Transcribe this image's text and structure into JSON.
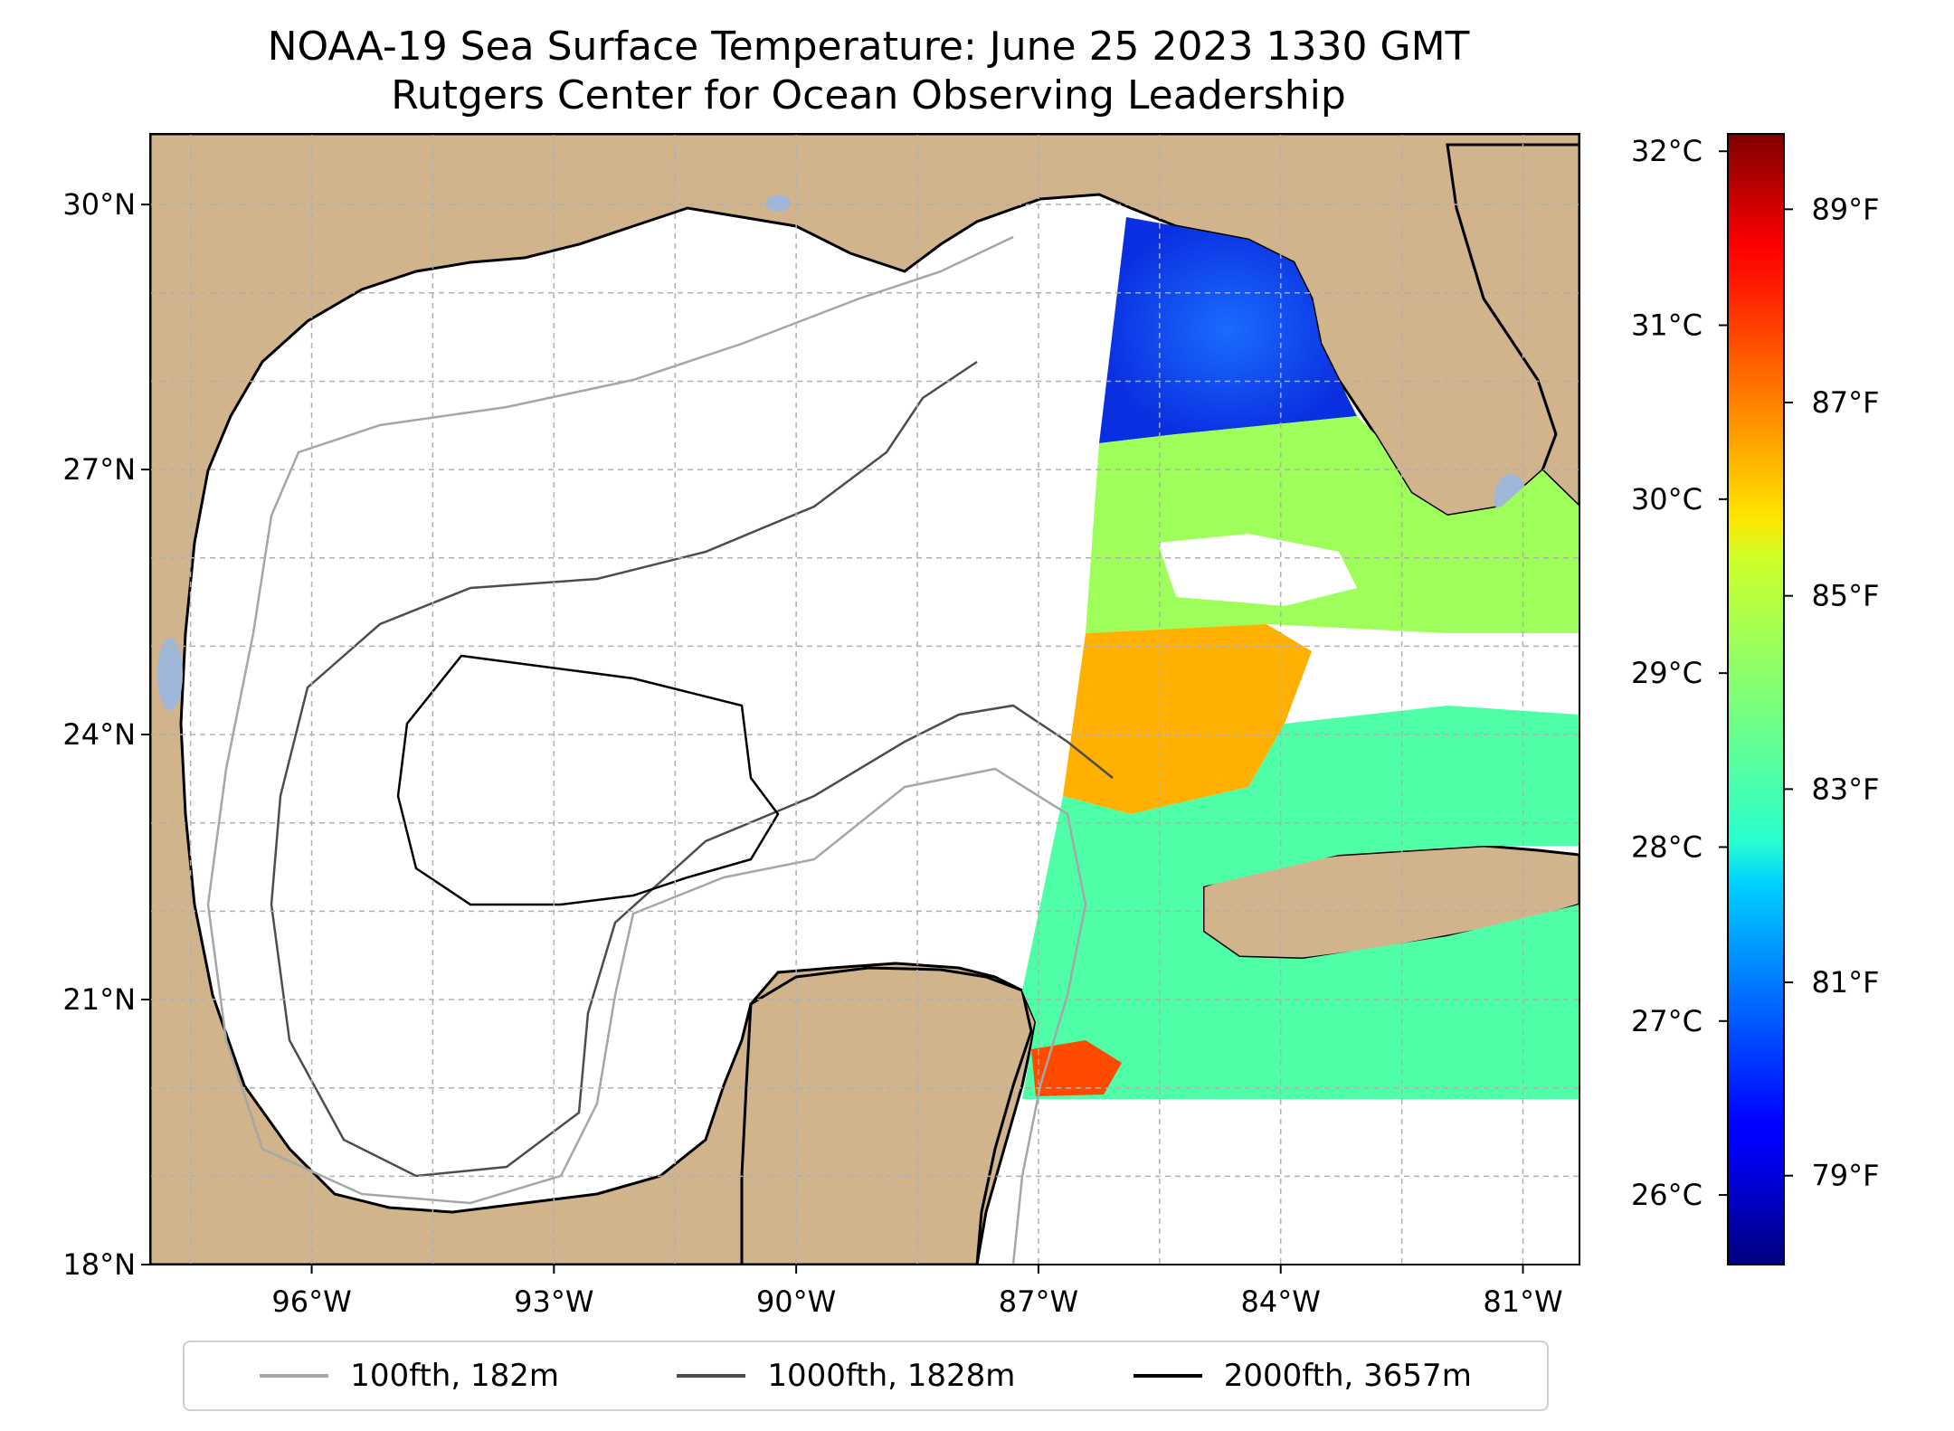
{
  "title": {
    "line1": "NOAA-19 Sea Surface Temperature: June 25 2023 1330 GMT",
    "line2": "Rutgers Center for Ocean Observing Leadership"
  },
  "map": {
    "lon_range": [
      -98.0,
      -80.3
    ],
    "lat_range": [
      18.0,
      30.8
    ],
    "lat_ticks": [
      {
        "value": 18,
        "label": "18°N"
      },
      {
        "value": 21,
        "label": "21°N"
      },
      {
        "value": 24,
        "label": "24°N"
      },
      {
        "value": 27,
        "label": "27°N"
      },
      {
        "value": 30,
        "label": "30°N"
      }
    ],
    "lon_ticks": [
      {
        "value": -96,
        "label": "96°W"
      },
      {
        "value": -93,
        "label": "93°W"
      },
      {
        "value": -90,
        "label": "90°W"
      },
      {
        "value": -87,
        "label": "87°W"
      },
      {
        "value": -84,
        "label": "84°W"
      },
      {
        "value": -81,
        "label": "81°W"
      }
    ],
    "gridlines": true,
    "colors": {
      "land": "#d2b48c",
      "water_no_data": "#ffffff",
      "lakes": "#9fb7d9",
      "coast": "#000000"
    }
  },
  "colorbar": {
    "colormap": "jet",
    "celsius_range": [
      25.6,
      32.1
    ],
    "celsius_ticks": [
      {
        "value": 26,
        "label": "26°C"
      },
      {
        "value": 27,
        "label": "27°C"
      },
      {
        "value": 28,
        "label": "28°C"
      },
      {
        "value": 29,
        "label": "29°C"
      },
      {
        "value": 30,
        "label": "30°C"
      },
      {
        "value": 31,
        "label": "31°C"
      },
      {
        "value": 32,
        "label": "32°C"
      }
    ],
    "fahrenheit_ticks": [
      {
        "value": 79,
        "label": "79°F"
      },
      {
        "value": 81,
        "label": "81°F"
      },
      {
        "value": 83,
        "label": "83°F"
      },
      {
        "value": 85,
        "label": "85°F"
      },
      {
        "value": 87,
        "label": "87°F"
      },
      {
        "value": 89,
        "label": "89°F"
      }
    ]
  },
  "legend": {
    "placement": "bottom-center",
    "items": [
      {
        "label": "100fth, 182m",
        "color": "#a6a6a6"
      },
      {
        "label": "1000fth, 1828m",
        "color": "#4d4d4d"
      },
      {
        "label": "2000fth, 3657m",
        "color": "#000000"
      }
    ]
  }
}
